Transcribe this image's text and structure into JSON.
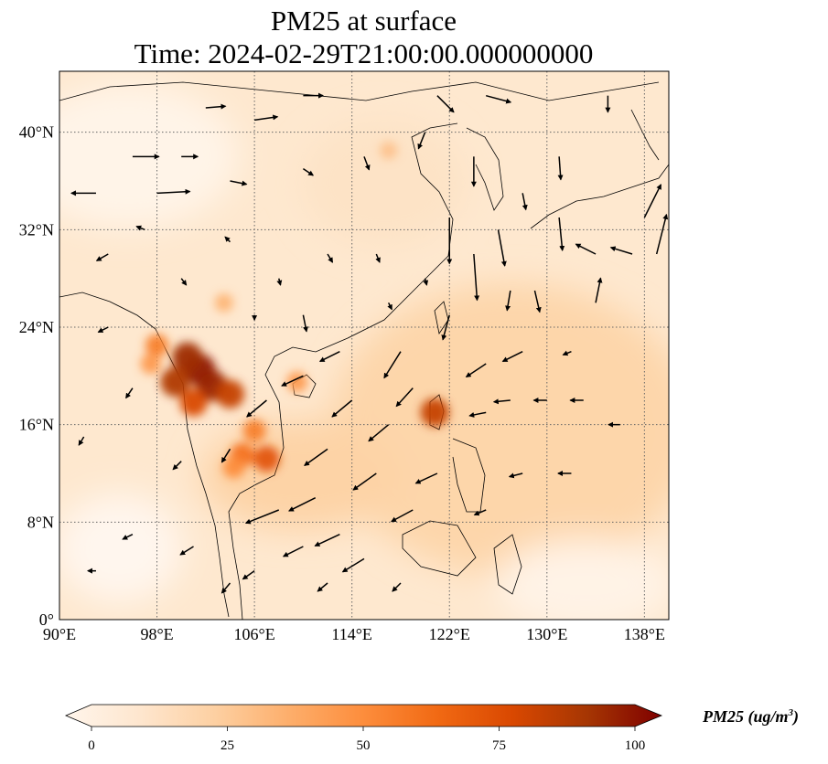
{
  "title": {
    "line1": "PM25 at surface",
    "line2": "Time: 2024-02-29T21:00:00.000000000"
  },
  "map": {
    "lon_range": [
      90,
      140
    ],
    "lat_range": [
      0,
      45
    ],
    "lon_ticks": [
      {
        "value": 90,
        "label": "90°E"
      },
      {
        "value": 98,
        "label": "98°E"
      },
      {
        "value": 106,
        "label": "106°E"
      },
      {
        "value": 114,
        "label": "114°E"
      },
      {
        "value": 122,
        "label": "122°E"
      },
      {
        "value": 130,
        "label": "130°E"
      },
      {
        "value": 138,
        "label": "138°E"
      }
    ],
    "lat_ticks": [
      {
        "value": 0,
        "label": "0°"
      },
      {
        "value": 8,
        "label": "8°N"
      },
      {
        "value": 16,
        "label": "16°N"
      },
      {
        "value": 24,
        "label": "24°N"
      },
      {
        "value": 32,
        "label": "32°N"
      },
      {
        "value": 40,
        "label": "40°N"
      }
    ],
    "gridlines": true
  },
  "colorbar": {
    "label_main": "PM25 (ug/m",
    "label_sup": "3",
    "label_close": ")",
    "min": 0,
    "max": 100,
    "extend": "both",
    "ticks": [
      {
        "value": 0,
        "label": "0"
      },
      {
        "value": 25,
        "label": "25"
      },
      {
        "value": 50,
        "label": "50"
      },
      {
        "value": 75,
        "label": "75"
      },
      {
        "value": 100,
        "label": "100"
      }
    ],
    "colors": [
      "#fff5eb",
      "#fee6ce",
      "#fdd0a2",
      "#fdae6b",
      "#fd8d3c",
      "#f16913",
      "#d94801",
      "#a63603",
      "#7f0000"
    ]
  },
  "pollution_hotspots": [
    {
      "lon": 101.5,
      "lat": 20.5,
      "value": 95
    },
    {
      "lon": 100.5,
      "lat": 21.5,
      "value": 90
    },
    {
      "lon": 102.5,
      "lat": 19.2,
      "value": 92
    },
    {
      "lon": 99.5,
      "lat": 19.5,
      "value": 85
    },
    {
      "lon": 104.0,
      "lat": 18.5,
      "value": 80
    },
    {
      "lon": 101.0,
      "lat": 17.8,
      "value": 75
    },
    {
      "lon": 107.0,
      "lat": 13.2,
      "value": 70
    },
    {
      "lon": 105.0,
      "lat": 13.5,
      "value": 60
    },
    {
      "lon": 104.3,
      "lat": 12.5,
      "value": 50
    },
    {
      "lon": 106.0,
      "lat": 15.5,
      "value": 55
    },
    {
      "lon": 98.0,
      "lat": 22.5,
      "value": 55
    },
    {
      "lon": 120.8,
      "lat": 17.0,
      "value": 80
    },
    {
      "lon": 97.5,
      "lat": 21.0,
      "value": 45
    },
    {
      "lon": 103.5,
      "lat": 26.0,
      "value": 35
    },
    {
      "lon": 117.0,
      "lat": 38.5,
      "value": 30
    },
    {
      "lon": 109.5,
      "lat": 19.5,
      "value": 45
    }
  ],
  "wind_vectors": [
    {
      "lon": 93,
      "lat": 35,
      "u": -1.5,
      "v": 0
    },
    {
      "lon": 96,
      "lat": 38,
      "u": 1.6,
      "v": 0
    },
    {
      "lon": 98,
      "lat": 35,
      "u": 2.0,
      "v": 0.1
    },
    {
      "lon": 102,
      "lat": 42,
      "u": 1.2,
      "v": 0.1
    },
    {
      "lon": 106,
      "lat": 41,
      "u": 1.4,
      "v": 0.2
    },
    {
      "lon": 110,
      "lat": 43,
      "u": 1.2,
      "v": 0
    },
    {
      "lon": 94,
      "lat": 30,
      "u": -0.7,
      "v": -0.4
    },
    {
      "lon": 100,
      "lat": 38,
      "u": 1.0,
      "v": 0
    },
    {
      "lon": 104,
      "lat": 36,
      "u": 1.0,
      "v": -0.2
    },
    {
      "lon": 110,
      "lat": 37,
      "u": 0.6,
      "v": -0.4
    },
    {
      "lon": 115,
      "lat": 38,
      "u": 0.3,
      "v": -0.8
    },
    {
      "lon": 120,
      "lat": 40,
      "u": -0.4,
      "v": -1.0
    },
    {
      "lon": 125,
      "lat": 43,
      "u": 1.5,
      "v": -0.4
    },
    {
      "lon": 121,
      "lat": 43,
      "u": 1.0,
      "v": -1.0
    },
    {
      "lon": 124,
      "lat": 38,
      "u": 0,
      "v": -1.8
    },
    {
      "lon": 122,
      "lat": 33,
      "u": 0,
      "v": -2.8
    },
    {
      "lon": 124,
      "lat": 30,
      "u": 0.2,
      "v": -2.8
    },
    {
      "lon": 126,
      "lat": 32,
      "u": 0.4,
      "v": -2.2
    },
    {
      "lon": 128,
      "lat": 35,
      "u": 0.2,
      "v": -1.0
    },
    {
      "lon": 131,
      "lat": 33,
      "u": 0.2,
      "v": -2.0
    },
    {
      "lon": 131,
      "lat": 38,
      "u": 0.1,
      "v": -1.4
    },
    {
      "lon": 134,
      "lat": 30,
      "u": -1.2,
      "v": 0.6
    },
    {
      "lon": 137,
      "lat": 30,
      "u": -1.3,
      "v": 0.4
    },
    {
      "lon": 138,
      "lat": 33,
      "u": 1.0,
      "v": 2.0
    },
    {
      "lon": 139,
      "lat": 30,
      "u": 0.6,
      "v": 2.4
    },
    {
      "lon": 134,
      "lat": 26,
      "u": 0.3,
      "v": 1.5
    },
    {
      "lon": 127,
      "lat": 27,
      "u": -0.2,
      "v": -1.2
    },
    {
      "lon": 129,
      "lat": 27,
      "u": 0.3,
      "v": -1.3
    },
    {
      "lon": 122,
      "lat": 25,
      "u": -0.4,
      "v": -1.5
    },
    {
      "lon": 118,
      "lat": 22,
      "u": -1.0,
      "v": -1.6
    },
    {
      "lon": 113,
      "lat": 22,
      "u": -1.2,
      "v": -0.6
    },
    {
      "lon": 110,
      "lat": 20,
      "u": -1.3,
      "v": -0.6
    },
    {
      "lon": 107,
      "lat": 18,
      "u": -1.2,
      "v": -1.0
    },
    {
      "lon": 114,
      "lat": 18,
      "u": -1.2,
      "v": -1.0
    },
    {
      "lon": 117,
      "lat": 16,
      "u": -1.2,
      "v": -1.0
    },
    {
      "lon": 112,
      "lat": 14,
      "u": -1.4,
      "v": -1.0
    },
    {
      "lon": 116,
      "lat": 12,
      "u": -1.4,
      "v": -1.0
    },
    {
      "lon": 108,
      "lat": 9,
      "u": -2.0,
      "v": -0.8
    },
    {
      "lon": 111,
      "lat": 10,
      "u": -1.6,
      "v": -0.8
    },
    {
      "lon": 113,
      "lat": 7,
      "u": -1.5,
      "v": -0.7
    },
    {
      "lon": 115,
      "lat": 5,
      "u": -1.3,
      "v": -0.8
    },
    {
      "lon": 110,
      "lat": 6,
      "u": -1.2,
      "v": -0.6
    },
    {
      "lon": 119,
      "lat": 9,
      "u": -1.3,
      "v": -0.7
    },
    {
      "lon": 121,
      "lat": 12,
      "u": -1.3,
      "v": -0.6
    },
    {
      "lon": 125,
      "lat": 17,
      "u": -1.0,
      "v": -0.2
    },
    {
      "lon": 127,
      "lat": 18,
      "u": -1.0,
      "v": -0.1
    },
    {
      "lon": 130,
      "lat": 18,
      "u": -0.8,
      "v": 0
    },
    {
      "lon": 133,
      "lat": 18,
      "u": -0.8,
      "v": 0
    },
    {
      "lon": 128,
      "lat": 22,
      "u": -1.2,
      "v": -0.6
    },
    {
      "lon": 125,
      "lat": 21,
      "u": -1.2,
      "v": -0.8
    },
    {
      "lon": 119,
      "lat": 19,
      "u": -1.0,
      "v": -1.1
    },
    {
      "lon": 104,
      "lat": 14,
      "u": -0.5,
      "v": -0.8
    },
    {
      "lon": 100,
      "lat": 13,
      "u": -0.5,
      "v": -0.5
    },
    {
      "lon": 96,
      "lat": 19,
      "u": -0.4,
      "v": -0.6
    },
    {
      "lon": 94,
      "lat": 24,
      "u": -0.6,
      "v": -0.3
    },
    {
      "lon": 92,
      "lat": 15,
      "u": -0.3,
      "v": -0.5
    },
    {
      "lon": 96,
      "lat": 7,
      "u": -0.6,
      "v": -0.3
    },
    {
      "lon": 101,
      "lat": 6,
      "u": -0.8,
      "v": -0.5
    },
    {
      "lon": 104,
      "lat": 3,
      "u": -0.5,
      "v": -0.6
    },
    {
      "lon": 106,
      "lat": 4,
      "u": -0.7,
      "v": -0.5
    },
    {
      "lon": 93,
      "lat": 4,
      "u": -0.5,
      "v": 0
    },
    {
      "lon": 112,
      "lat": 3,
      "u": -0.6,
      "v": -0.5
    },
    {
      "lon": 118,
      "lat": 3,
      "u": -0.5,
      "v": -0.5
    },
    {
      "lon": 116,
      "lat": 30,
      "u": 0.2,
      "v": -0.5
    },
    {
      "lon": 112,
      "lat": 30,
      "u": 0.3,
      "v": -0.5
    },
    {
      "lon": 108,
      "lat": 28,
      "u": 0.1,
      "v": -0.4
    },
    {
      "lon": 100,
      "lat": 28,
      "u": 0.3,
      "v": -0.4
    },
    {
      "lon": 106,
      "lat": 25,
      "u": 0,
      "v": -0.3
    },
    {
      "lon": 110,
      "lat": 25,
      "u": 0.2,
      "v": -1.0
    },
    {
      "lon": 97,
      "lat": 32,
      "u": -0.5,
      "v": 0.2
    },
    {
      "lon": 104,
      "lat": 31,
      "u": -0.3,
      "v": 0.3
    },
    {
      "lon": 132,
      "lat": 12,
      "u": -0.8,
      "v": 0
    },
    {
      "lon": 128,
      "lat": 12,
      "u": -0.8,
      "v": -0.2
    },
    {
      "lon": 125,
      "lat": 9,
      "u": -0.7,
      "v": -0.3
    },
    {
      "lon": 132,
      "lat": 22,
      "u": -0.5,
      "v": -0.2
    },
    {
      "lon": 136,
      "lat": 16,
      "u": -0.7,
      "v": 0
    },
    {
      "lon": 135,
      "lat": 43,
      "u": 0,
      "v": -1.0
    },
    {
      "lon": 120,
      "lat": 28,
      "u": 0.1,
      "v": -0.4
    },
    {
      "lon": 117,
      "lat": 26,
      "u": 0.2,
      "v": -0.4
    }
  ]
}
